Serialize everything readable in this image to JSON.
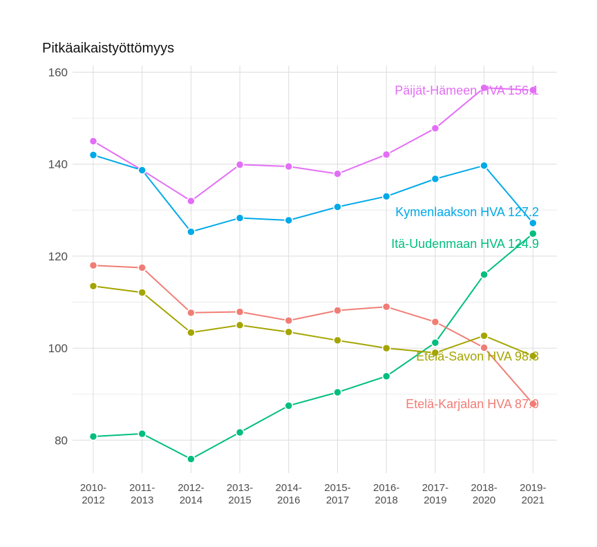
{
  "chart_data": {
    "type": "line",
    "title": "Pitkäaikaistyöttömyys",
    "xlabel": "",
    "ylabel": "",
    "categories": [
      [
        "2010-",
        "2012"
      ],
      [
        "2011-",
        "2013"
      ],
      [
        "2012-",
        "2014"
      ],
      [
        "2013-",
        "2015"
      ],
      [
        "2014-",
        "2016"
      ],
      [
        "2015-",
        "2017"
      ],
      [
        "2016-",
        "2018"
      ],
      [
        "2017-",
        "2019"
      ],
      [
        "2018-",
        "2020"
      ],
      [
        "2019-",
        "2021"
      ]
    ],
    "ylim": [
      73,
      160
    ],
    "yticks": [
      80,
      100,
      120,
      140,
      160
    ],
    "grid": true,
    "legend": "end-labels",
    "series": [
      {
        "name": "Päijät-Hämeen HVA",
        "label": "Päijät-Hämeen HVA 156.1",
        "color": "#E36EF6",
        "values": [
          145.0,
          138.7,
          132.0,
          139.9,
          139.5,
          137.9,
          142.1,
          147.8,
          156.6,
          156.1
        ]
      },
      {
        "name": "Kymenlaakson HVA",
        "label": "Kymenlaakson HVA 127.2",
        "color": "#00A9E8",
        "values": [
          142.0,
          138.7,
          125.3,
          128.3,
          127.8,
          130.7,
          133.0,
          136.8,
          139.7,
          127.2
        ]
      },
      {
        "name": "Itä-Uudenmaan HVA",
        "label": "Itä-Uudenmaan HVA 124.9",
        "color": "#00BE7D",
        "values": [
          80.8,
          81.4,
          75.9,
          81.7,
          87.5,
          90.4,
          93.9,
          101.2,
          116.0,
          124.9
        ]
      },
      {
        "name": "Etelä-Karjalan HVA",
        "label": "Etelä-Karjalan HVA 87.9",
        "color": "#F07D75",
        "values": [
          118.0,
          117.5,
          107.7,
          107.9,
          106.0,
          108.2,
          109.0,
          105.7,
          100.1,
          87.9
        ]
      },
      {
        "name": "Etelä-Savon HVA",
        "label": "Etelä-Savon HVA 98.3",
        "color": "#A4A500",
        "values": [
          113.5,
          112.1,
          103.4,
          105.0,
          103.5,
          101.7,
          100.0,
          99.0,
          102.7,
          98.3
        ]
      }
    ]
  }
}
